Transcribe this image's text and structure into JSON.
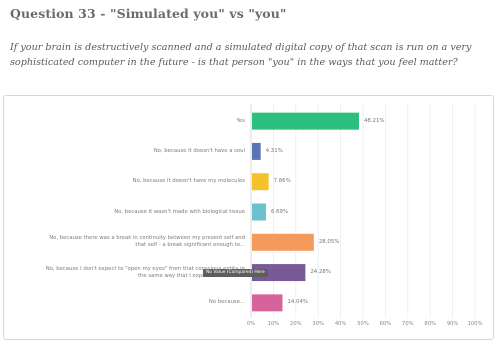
{
  "header": {
    "title": "Question 33 - \"Simulated you\" vs \"you\"",
    "question": "If your brain is destructively scanned and a simulated digital copy of that scan is run on a very sophisticated computer in the future - is that person \"you\" in the ways that you feel matter?"
  },
  "tooltip": "No Value (Compared) Here",
  "chart_data": {
    "type": "bar",
    "orientation": "horizontal",
    "categories": [
      "Yes",
      "No, because it doesn't have a soul",
      "No, because it doesn't have my molecules",
      "No, because it wasn't made with biological tissue",
      "No, because there was a break in continuity between my present self and that self - a break significant enough to...",
      "No, because I don't expect to \"open my eyes\" from that conscious entity in the same way that I expect to do so in...",
      "No because..."
    ],
    "values": [
      48.21,
      4.31,
      7.86,
      6.69,
      28.05,
      24.28,
      14.04
    ],
    "value_labels": [
      "48.21%",
      "4.31%",
      "7.86%",
      "6.69%",
      "28.05%",
      "24.28%",
      "14.04%"
    ],
    "colors": [
      "#2cc07f",
      "#5b74b5",
      "#f4c329",
      "#6cc1cf",
      "#f49b5c",
      "#7a5a96",
      "#d6649b"
    ],
    "xlim": [
      0,
      100
    ],
    "x_ticks": [
      "0%",
      "10%",
      "20%",
      "30%",
      "40%",
      "50%",
      "60%",
      "70%",
      "80%",
      "90%",
      "100%"
    ],
    "grid": true
  }
}
